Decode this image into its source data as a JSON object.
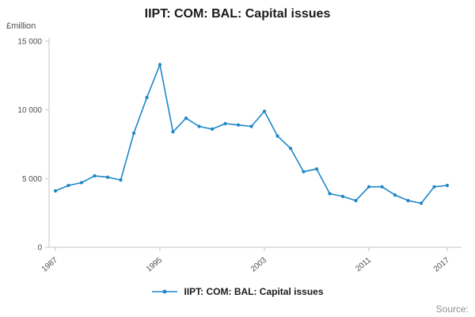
{
  "chart_data": {
    "type": "line",
    "title": "IIPT: COM: BAL: Capital issues",
    "ylabel": "£million",
    "x": [
      1987,
      1988,
      1989,
      1990,
      1991,
      1992,
      1993,
      1994,
      1995,
      1996,
      1997,
      1998,
      1999,
      2000,
      2001,
      2002,
      2003,
      2004,
      2005,
      2006,
      2007,
      2008,
      2009,
      2010,
      2011,
      2012,
      2013,
      2014,
      2015,
      2016,
      2017
    ],
    "series": [
      {
        "name": "IIPT: COM: BAL: Capital issues",
        "values": [
          4100,
          4500,
          4700,
          5200,
          5100,
          4900,
          8300,
          10900,
          13300,
          8400,
          9400,
          8800,
          8600,
          9000,
          8900,
          8800,
          9900,
          8100,
          7200,
          5500,
          5700,
          3900,
          3700,
          3400,
          4400,
          4400,
          3800,
          3400,
          3200,
          4400,
          4500
        ]
      }
    ],
    "ylim": [
      0,
      15000
    ],
    "yticks": [
      0,
      5000,
      10000,
      15000
    ],
    "ytick_labels": [
      "0",
      "5 000",
      "10 000",
      "15 000"
    ],
    "xticks": [
      1987,
      1995,
      2003,
      2011,
      2017
    ],
    "grid": false,
    "legend_position": "bottom",
    "line_color": "#1d86c8",
    "axis_color": "#c6c6c6",
    "tick_label_color": "#4d4d4d"
  },
  "footer": {
    "source_label": "Source:"
  }
}
